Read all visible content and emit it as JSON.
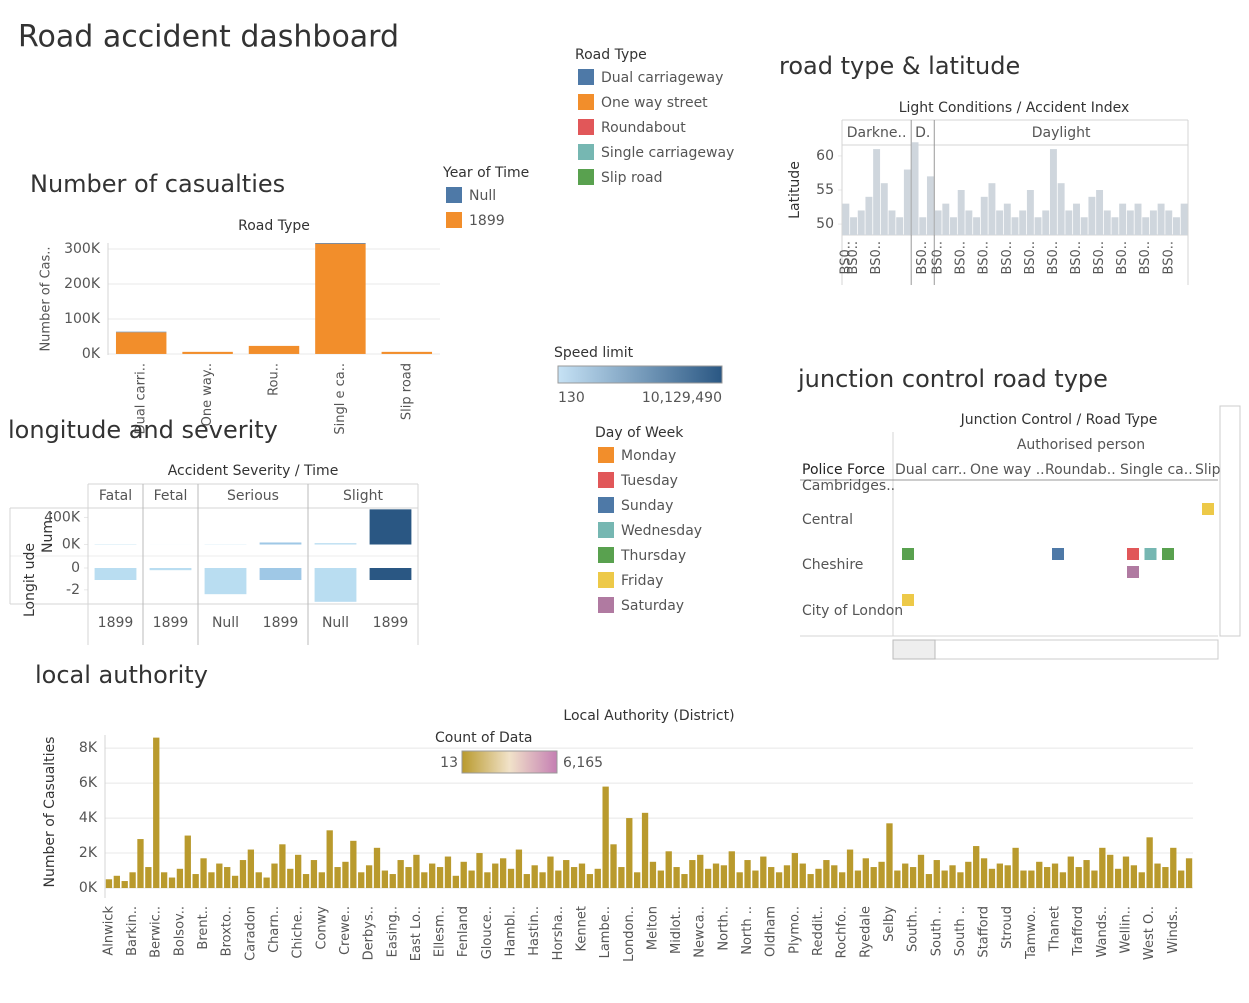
{
  "title": "Road accident dashboard",
  "legends": {
    "road_type": {
      "title": "Road Type",
      "items": [
        {
          "name": "Dual carriageway",
          "color": "#4e79a7"
        },
        {
          "name": "One way street",
          "color": "#f28e2b"
        },
        {
          "name": "Roundabout",
          "color": "#e15759"
        },
        {
          "name": "Single carriageway",
          "color": "#76b7b2"
        },
        {
          "name": "Slip road",
          "color": "#59a14f"
        }
      ]
    },
    "speed_limit": {
      "title": "Speed limit",
      "colors": [
        "#c6e2f5",
        "#2a5783"
      ],
      "range": [
        130,
        {
          "value": 10129490,
          "label": "10,129,490"
        }
      ]
    },
    "day_of_week": {
      "title": "Day of Week",
      "items": [
        {
          "name": "Monday",
          "color": "#f28e2b"
        },
        {
          "name": "Tuesday",
          "color": "#e15759"
        },
        {
          "name": "Sunday",
          "color": "#4e79a7"
        },
        {
          "name": "Wednesday",
          "color": "#76b7b2"
        },
        {
          "name": "Thursday",
          "color": "#59a14f"
        },
        {
          "name": "Friday",
          "color": "#edc948"
        },
        {
          "name": "Saturday",
          "color": "#b07aa1"
        }
      ]
    },
    "count_of_data": {
      "title": "Count of Data",
      "colors": [
        "#b99a2d",
        "#f1e2c9",
        "#c57fb3"
      ],
      "range": [
        13,
        {
          "value": 6165,
          "label": "6,165"
        }
      ]
    }
  },
  "chart_data": [
    {
      "type": "bar",
      "title": "Number of casualties",
      "header": "Road Type",
      "ylabel": "Number of Cas..",
      "categories": [
        "Dual carri..",
        "One way..",
        "Rou..",
        "Singl e ca..",
        "Slip road"
      ],
      "legend_title": "Year of Time",
      "series": [
        {
          "name": "Null",
          "color": "#4e79a7",
          "values": [
            1500,
            0,
            0,
            2000,
            0
          ]
        },
        {
          "name": "1899",
          "color": "#f28e2b",
          "values": [
            62000,
            6000,
            23000,
            315000,
            6000
          ]
        }
      ],
      "ylim": [
        -3000,
        317000
      ],
      "yticks": [
        {
          "value": 0,
          "label": "0K"
        },
        {
          "value": 100000,
          "label": "100K"
        },
        {
          "value": 200000,
          "label": "200K"
        },
        {
          "value": 300000,
          "label": "300K"
        }
      ],
      "grid": true
    },
    {
      "type": "bar",
      "title": "road type & latitude",
      "header": "Light Conditions / Accident Index",
      "ylabel": "Latitude",
      "color": "#cfd6dd",
      "ylim": [
        48.4,
        61.6
      ],
      "yticks": [
        50,
        55,
        60
      ],
      "panels": [
        {
          "label": "Darkne..",
          "categories": [
            "BS0..",
            "BS0..",
            null,
            null,
            "BS0..",
            null,
            null,
            null,
            null
          ],
          "values": [
            53,
            51,
            52,
            54,
            61,
            56,
            52,
            51,
            58
          ]
        },
        {
          "label": "D.",
          "categories": [
            null,
            "BS0..",
            null
          ],
          "values": [
            62,
            51,
            57
          ]
        },
        {
          "label": "Daylight",
          "categories": [
            "BS0..",
            null,
            null,
            "BS0..",
            null,
            null,
            "BS0..",
            null,
            null,
            "BS0..",
            null,
            null,
            "BS0..",
            null,
            null,
            "BS0..",
            null,
            null,
            "BS0..",
            null,
            null,
            "BS0..",
            null,
            null,
            "BS0..",
            null,
            null,
            "BS0..",
            null,
            null,
            "BS0..",
            null,
            null
          ],
          "values": [
            52,
            53,
            51,
            55,
            52,
            51,
            54,
            56,
            52,
            53,
            51,
            52,
            55,
            51,
            52,
            61,
            56,
            52,
            53,
            51,
            54,
            55,
            52,
            51,
            53,
            52,
            53,
            51,
            52,
            53,
            52,
            51,
            53
          ]
        }
      ]
    },
    {
      "type": "bar",
      "title": "longitude and severity",
      "header": "Accident Severity / Time",
      "panels": [
        {
          "label": "Fatal",
          "categories": [
            "1899"
          ]
        },
        {
          "label": "Fetal",
          "categories": [
            "1899"
          ]
        },
        {
          "label": "Serious",
          "categories": [
            "Null",
            "1899"
          ]
        },
        {
          "label": "Slight",
          "categories": [
            "Null",
            "1899"
          ]
        }
      ],
      "colors": [
        "#b9ddf1",
        "#b9ddf1",
        "#b9ddf1",
        "#9fc8e6",
        "#b9ddf1",
        "#2a5783"
      ],
      "rows": [
        {
          "label": "Num..",
          "ylim": [
            -170000,
            540000
          ],
          "yticks": [
            {
              "value": 0,
              "label": "0K"
            },
            {
              "value": 400000,
              "label": "400K"
            }
          ],
          "values": [
            5000,
            500,
            3000,
            30000,
            20000,
            520000
          ]
        },
        {
          "label": "Longit ude",
          "ylim": [
            -3.3,
            1.1
          ],
          "yticks": [
            0,
            -2
          ],
          "values": [
            -1.1,
            -0.2,
            -2.4,
            -1.1,
            -3.1,
            -1.1
          ]
        }
      ]
    },
    {
      "type": "grid",
      "title": "junction control road type",
      "header": "Junction Control / Road Type",
      "column_group": "Authorised person",
      "row_header": "Police Force",
      "columns": [
        "Dual carr..",
        "One way ..",
        "Roundab..",
        "Single ca..",
        "Slip"
      ],
      "rows": [
        "Cambridges..",
        "Central",
        "Cheshire",
        "City of London"
      ],
      "marks": [
        {
          "row": "Central",
          "column": "Slip",
          "day": "Friday"
        },
        {
          "row": "Cheshire",
          "column": "Dual carr..",
          "day": "Thursday"
        },
        {
          "row": "Cheshire",
          "column": "Roundab..",
          "day": "Sunday"
        },
        {
          "row": "Cheshire",
          "column": "Single ca..",
          "day": "Tuesday"
        },
        {
          "row": "Cheshire",
          "column": "Single ca..",
          "day": "Wednesday"
        },
        {
          "row": "Cheshire",
          "column": "Single ca..",
          "day": "Thursday"
        },
        {
          "row": "Cheshire",
          "column": "Single ca..",
          "day": "Saturday"
        },
        {
          "row": "City of London",
          "column": "Dual carr..",
          "day": "Friday"
        }
      ]
    },
    {
      "type": "bar",
      "title": "local authority",
      "header": "Local Authority (District)",
      "ylabel": "Number of Casualties",
      "color": "#b99a2d",
      "ylim": [
        -570,
        8750
      ],
      "yticks": [
        {
          "value": 0,
          "label": "0K"
        },
        {
          "value": 2000,
          "label": "2K"
        },
        {
          "value": 4000,
          "label": "4K"
        },
        {
          "value": 6000,
          "label": "6K"
        },
        {
          "value": 8000,
          "label": "8K"
        }
      ],
      "grid": true,
      "categories": [
        "Alnwick",
        null,
        null,
        "Barkin..",
        null,
        null,
        "Berwic..",
        null,
        null,
        "Bolsov..",
        null,
        null,
        "Brent..",
        null,
        null,
        "Broxto..",
        null,
        null,
        "Caradon",
        null,
        null,
        "Charn..",
        null,
        null,
        "Chiche..",
        null,
        null,
        "Conwy",
        null,
        null,
        "Crewe..",
        null,
        null,
        "Derbys..",
        null,
        null,
        "Easing..",
        null,
        null,
        "East Lo..",
        null,
        null,
        "Ellesm..",
        null,
        null,
        "Fenland",
        null,
        null,
        "Glouce..",
        null,
        null,
        "Hambl..",
        null,
        null,
        "Hastin..",
        null,
        null,
        "Horsha..",
        null,
        null,
        "Kennet",
        null,
        null,
        "Lambe..",
        null,
        null,
        "London..",
        null,
        null,
        "Melton",
        null,
        null,
        "Midlot..",
        null,
        null,
        "Newca..",
        null,
        null,
        "North..",
        null,
        null,
        "North ..",
        null,
        null,
        "Oldham",
        null,
        null,
        "Plymo..",
        null,
        null,
        "Reddit..",
        null,
        null,
        "Rochfo..",
        null,
        null,
        "Ryedale",
        null,
        null,
        "Selby",
        null,
        null,
        "South..",
        null,
        null,
        "South ..",
        null,
        null,
        "South ..",
        null,
        null,
        "Stafford",
        null,
        null,
        "Stroud",
        null,
        null,
        "Tamwo..",
        null,
        null,
        "Thanet",
        null,
        null,
        "Trafford",
        null,
        null,
        "Wands..",
        null,
        null,
        "Wellin..",
        null,
        null,
        "West O..",
        null,
        null,
        "Winds..",
        null,
        null
      ],
      "values": [
        500,
        700,
        400,
        900,
        2800,
        1200,
        8600,
        900,
        600,
        1100,
        3000,
        800,
        1700,
        900,
        1400,
        1200,
        700,
        1600,
        2200,
        900,
        600,
        1400,
        2500,
        1100,
        1900,
        800,
        1600,
        900,
        3300,
        1200,
        1500,
        2700,
        900,
        1300,
        2300,
        1000,
        800,
        1600,
        1200,
        1900,
        900,
        1400,
        1200,
        1800,
        700,
        1500,
        1000,
        2000,
        900,
        1400,
        1700,
        1100,
        2200,
        800,
        1300,
        900,
        1800,
        1000,
        1600,
        1200,
        1400,
        800,
        1100,
        5800,
        2500,
        1200,
        4000,
        900,
        4300,
        1500,
        1000,
        2100,
        1200,
        800,
        1600,
        1900,
        1100,
        1400,
        1300,
        2100,
        900,
        1600,
        1000,
        1800,
        1200,
        900,
        1300,
        2000,
        1400,
        800,
        1100,
        1600,
        1300,
        900,
        2200,
        1000,
        1700,
        1200,
        1500,
        3700,
        1000,
        1400,
        1200,
        1900,
        800,
        1600,
        1000,
        1300,
        900,
        1500,
        2400,
        1700,
        1100,
        1400,
        1300,
        2300,
        1000,
        1000,
        1500,
        1200,
        1400,
        900,
        1800,
        1200,
        1600,
        1000,
        2300,
        1900,
        1100,
        1800,
        1300,
        900,
        2900,
        1400,
        1200,
        2300,
        1000,
        1700
      ]
    }
  ]
}
